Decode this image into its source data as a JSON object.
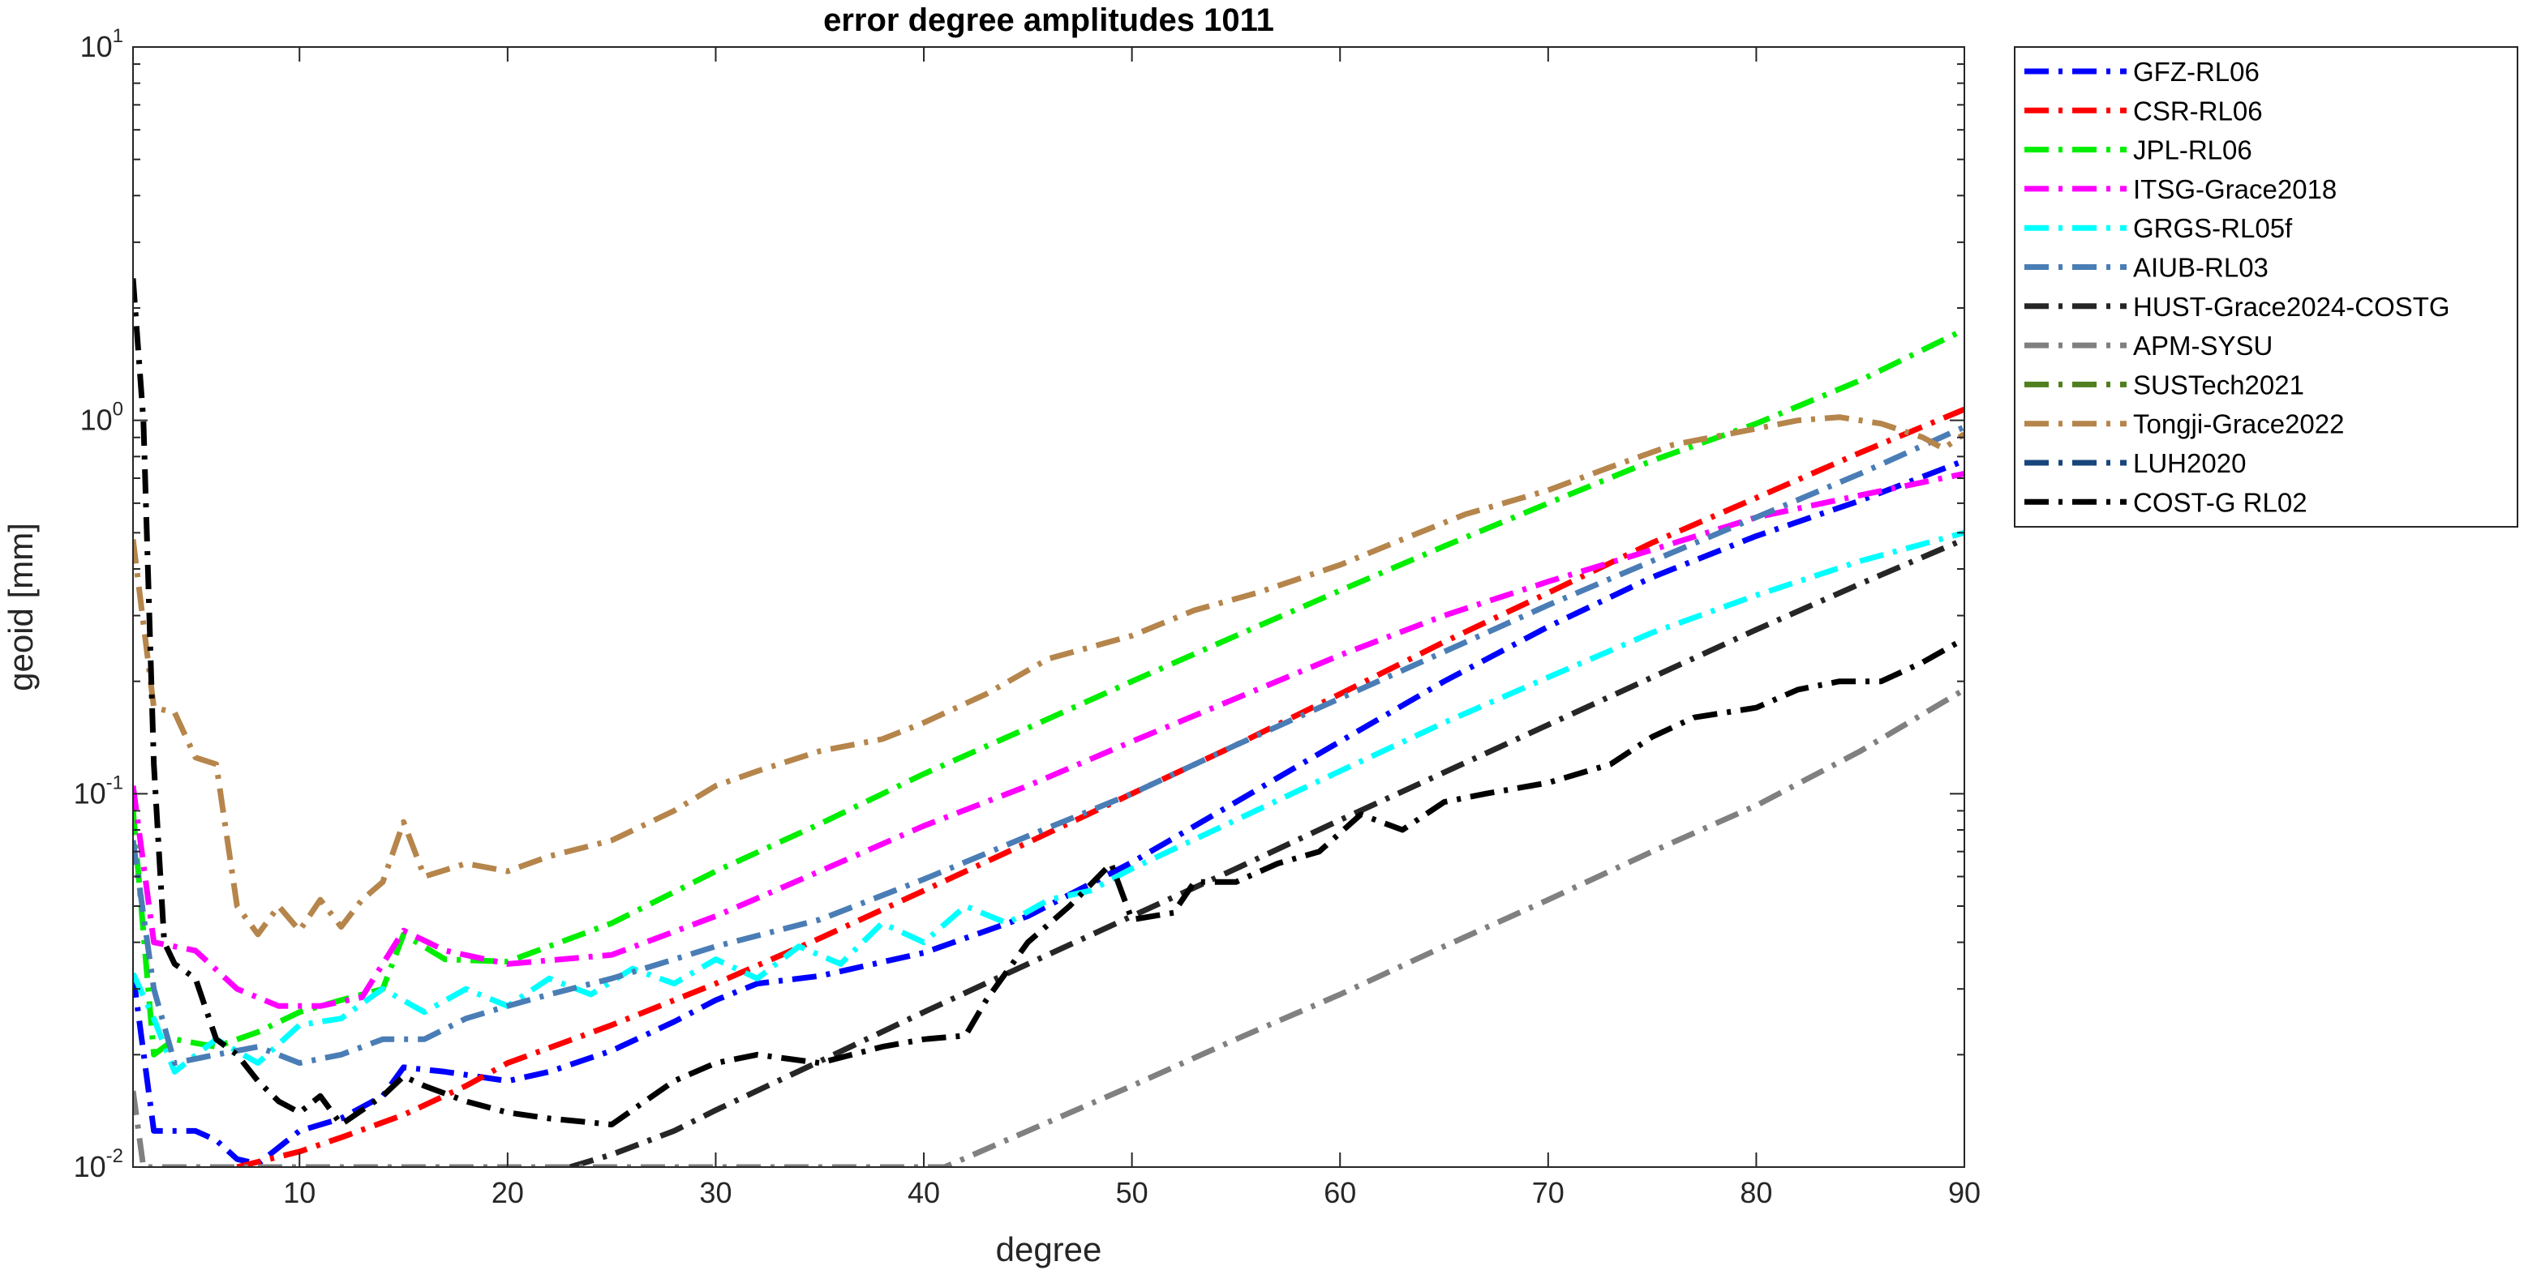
{
  "chart_data": {
    "type": "line",
    "title": "error degree amplitudes 1011",
    "xlabel": "degree",
    "ylabel": "geoid [mm]",
    "xlim": [
      2,
      90
    ],
    "ylim": [
      0.01,
      10
    ],
    "yscale": "log",
    "grid": false,
    "legend_position": "outside-top-right",
    "x_ticks": [
      10,
      20,
      30,
      40,
      50,
      60,
      70,
      80,
      90
    ],
    "x_tick_labels": [
      "10",
      "20",
      "30",
      "40",
      "50",
      "60",
      "70",
      "80",
      "90"
    ],
    "y_ticks": [
      {
        "value": 0.01,
        "base": "10",
        "exp": "-2"
      },
      {
        "value": 0.1,
        "base": "10",
        "exp": "-1"
      },
      {
        "value": 1,
        "base": "10",
        "exp": "0"
      },
      {
        "value": 10,
        "base": "10",
        "exp": "1"
      }
    ],
    "series": [
      {
        "name": "GFZ-RL06",
        "color": "#0000ff",
        "dash": "dashdot",
        "points": [
          [
            2,
            0.033
          ],
          [
            3,
            0.0125
          ],
          [
            4,
            0.0125
          ],
          [
            5,
            0.0125
          ],
          [
            6,
            0.0118
          ],
          [
            7,
            0.0105
          ],
          [
            8,
            0.0102
          ],
          [
            10,
            0.0125
          ],
          [
            12,
            0.0135
          ],
          [
            14,
            0.0155
          ],
          [
            15,
            0.0185
          ],
          [
            17,
            0.018
          ],
          [
            20,
            0.017
          ],
          [
            22,
            0.018
          ],
          [
            25,
            0.0205
          ],
          [
            28,
            0.0245
          ],
          [
            30,
            0.028
          ],
          [
            32,
            0.031
          ],
          [
            35,
            0.0325
          ],
          [
            40,
            0.0375
          ],
          [
            45,
            0.047
          ],
          [
            50,
            0.0655
          ],
          [
            55,
            0.095
          ],
          [
            60,
            0.138
          ],
          [
            65,
            0.2
          ],
          [
            70,
            0.28
          ],
          [
            75,
            0.38
          ],
          [
            80,
            0.49
          ],
          [
            85,
            0.61
          ],
          [
            90,
            0.78
          ]
        ]
      },
      {
        "name": "CSR-RL06",
        "color": "#ff0000",
        "dash": "dashdot",
        "points": [
          [
            7,
            0.01
          ],
          [
            10,
            0.011
          ],
          [
            12,
            0.012
          ],
          [
            15,
            0.0138
          ],
          [
            18,
            0.0165
          ],
          [
            20,
            0.019
          ],
          [
            25,
            0.024
          ],
          [
            30,
            0.031
          ],
          [
            35,
            0.041
          ],
          [
            40,
            0.055
          ],
          [
            45,
            0.074
          ],
          [
            50,
            0.1
          ],
          [
            55,
            0.135
          ],
          [
            60,
            0.185
          ],
          [
            65,
            0.255
          ],
          [
            70,
            0.345
          ],
          [
            75,
            0.47
          ],
          [
            80,
            0.62
          ],
          [
            85,
            0.82
          ],
          [
            90,
            1.07
          ]
        ]
      },
      {
        "name": "JPL-RL06",
        "color": "#00ee00",
        "dash": "dashdot",
        "points": [
          [
            2,
            0.09
          ],
          [
            3,
            0.02
          ],
          [
            4,
            0.022
          ],
          [
            6,
            0.021
          ],
          [
            8,
            0.023
          ],
          [
            10,
            0.026
          ],
          [
            12,
            0.028
          ],
          [
            14,
            0.03
          ],
          [
            15,
            0.042
          ],
          [
            17,
            0.036
          ],
          [
            20,
            0.0355
          ],
          [
            25,
            0.045
          ],
          [
            30,
            0.062
          ],
          [
            35,
            0.083
          ],
          [
            40,
            0.113
          ],
          [
            45,
            0.15
          ],
          [
            50,
            0.2
          ],
          [
            55,
            0.265
          ],
          [
            60,
            0.35
          ],
          [
            65,
            0.46
          ],
          [
            70,
            0.6
          ],
          [
            75,
            0.78
          ],
          [
            80,
            0.98
          ],
          [
            85,
            1.28
          ],
          [
            90,
            1.75
          ]
        ]
      },
      {
        "name": "ITSG-Grace2018",
        "color": "#ff00ff",
        "dash": "dashdot",
        "points": [
          [
            2,
            0.105
          ],
          [
            3,
            0.04
          ],
          [
            5,
            0.038
          ],
          [
            7,
            0.03
          ],
          [
            9,
            0.027
          ],
          [
            11,
            0.027
          ],
          [
            13,
            0.0285
          ],
          [
            15,
            0.043
          ],
          [
            17,
            0.038
          ],
          [
            20,
            0.035
          ],
          [
            25,
            0.037
          ],
          [
            30,
            0.047
          ],
          [
            35,
            0.062
          ],
          [
            40,
            0.082
          ],
          [
            45,
            0.105
          ],
          [
            50,
            0.138
          ],
          [
            55,
            0.18
          ],
          [
            60,
            0.235
          ],
          [
            65,
            0.3
          ],
          [
            70,
            0.37
          ],
          [
            75,
            0.45
          ],
          [
            80,
            0.55
          ],
          [
            85,
            0.63
          ],
          [
            90,
            0.72
          ]
        ]
      },
      {
        "name": "GRGS-RL05f",
        "color": "#00ffff",
        "dash": "dashdot",
        "points": [
          [
            2,
            0.033
          ],
          [
            3,
            0.025
          ],
          [
            4,
            0.018
          ],
          [
            6,
            0.022
          ],
          [
            8,
            0.019
          ],
          [
            10,
            0.024
          ],
          [
            12,
            0.025
          ],
          [
            14,
            0.03
          ],
          [
            16,
            0.026
          ],
          [
            18,
            0.03
          ],
          [
            20,
            0.027
          ],
          [
            22,
            0.032
          ],
          [
            24,
            0.029
          ],
          [
            26,
            0.034
          ],
          [
            28,
            0.031
          ],
          [
            30,
            0.036
          ],
          [
            32,
            0.032
          ],
          [
            34,
            0.039
          ],
          [
            36,
            0.035
          ],
          [
            38,
            0.045
          ],
          [
            40,
            0.04
          ],
          [
            42,
            0.05
          ],
          [
            44,
            0.045
          ],
          [
            46,
            0.052
          ],
          [
            48,
            0.055
          ],
          [
            50,
            0.063
          ],
          [
            55,
            0.085
          ],
          [
            60,
            0.115
          ],
          [
            65,
            0.155
          ],
          [
            70,
            0.205
          ],
          [
            75,
            0.27
          ],
          [
            80,
            0.34
          ],
          [
            85,
            0.42
          ],
          [
            90,
            0.5
          ]
        ]
      },
      {
        "name": "AIUB-RL03",
        "color": "#4a7db5",
        "dash": "dashdot",
        "points": [
          [
            2,
            0.075
          ],
          [
            3,
            0.03
          ],
          [
            4,
            0.019
          ],
          [
            6,
            0.02
          ],
          [
            8,
            0.021
          ],
          [
            10,
            0.019
          ],
          [
            12,
            0.02
          ],
          [
            14,
            0.022
          ],
          [
            16,
            0.022
          ],
          [
            18,
            0.025
          ],
          [
            20,
            0.027
          ],
          [
            22,
            0.029
          ],
          [
            25,
            0.032
          ],
          [
            28,
            0.036
          ],
          [
            30,
            0.039
          ],
          [
            35,
            0.046
          ],
          [
            40,
            0.059
          ],
          [
            45,
            0.077
          ],
          [
            50,
            0.1
          ],
          [
            55,
            0.135
          ],
          [
            60,
            0.18
          ],
          [
            65,
            0.24
          ],
          [
            70,
            0.32
          ],
          [
            75,
            0.42
          ],
          [
            80,
            0.55
          ],
          [
            85,
            0.72
          ],
          [
            90,
            0.96
          ]
        ]
      },
      {
        "name": "HUST-Grace2024-COSTG",
        "color": "#262626",
        "dash": "dashdot",
        "points": [
          [
            23,
            0.01
          ],
          [
            25,
            0.0108
          ],
          [
            28,
            0.0125
          ],
          [
            30,
            0.0142
          ],
          [
            35,
            0.0192
          ],
          [
            40,
            0.026
          ],
          [
            45,
            0.035
          ],
          [
            50,
            0.047
          ],
          [
            55,
            0.063
          ],
          [
            60,
            0.085
          ],
          [
            65,
            0.114
          ],
          [
            70,
            0.153
          ],
          [
            75,
            0.205
          ],
          [
            80,
            0.275
          ],
          [
            85,
            0.365
          ],
          [
            90,
            0.48
          ]
        ]
      },
      {
        "name": "APM-SYSU",
        "color": "#808080",
        "dash": "dashdot",
        "points": [
          [
            2,
            0.016
          ],
          [
            2.5,
            0.01
          ],
          [
            41,
            0.01
          ],
          [
            45,
            0.0125
          ],
          [
            50,
            0.0165
          ],
          [
            55,
            0.022
          ],
          [
            60,
            0.029
          ],
          [
            65,
            0.039
          ],
          [
            70,
            0.052
          ],
          [
            75,
            0.07
          ],
          [
            80,
            0.093
          ],
          [
            85,
            0.13
          ],
          [
            90,
            0.19
          ]
        ]
      },
      {
        "name": "SUSTech2021",
        "color": "#4f7f1f",
        "dash": "dashdot",
        "points": []
      },
      {
        "name": "Tongji-Grace2022",
        "color": "#b5854b",
        "dash": "dashdot",
        "points": [
          [
            2,
            0.48
          ],
          [
            3,
            0.17
          ],
          [
            4,
            0.165
          ],
          [
            5,
            0.125
          ],
          [
            6,
            0.12
          ],
          [
            7,
            0.05
          ],
          [
            8,
            0.042
          ],
          [
            9,
            0.05
          ],
          [
            10,
            0.043
          ],
          [
            11,
            0.052
          ],
          [
            12,
            0.044
          ],
          [
            13,
            0.052
          ],
          [
            14,
            0.058
          ],
          [
            15,
            0.084
          ],
          [
            16,
            0.06
          ],
          [
            18,
            0.065
          ],
          [
            20,
            0.062
          ],
          [
            22,
            0.068
          ],
          [
            25,
            0.075
          ],
          [
            28,
            0.09
          ],
          [
            30,
            0.105
          ],
          [
            32,
            0.115
          ],
          [
            35,
            0.13
          ],
          [
            38,
            0.14
          ],
          [
            40,
            0.155
          ],
          [
            43,
            0.185
          ],
          [
            46,
            0.23
          ],
          [
            50,
            0.265
          ],
          [
            53,
            0.31
          ],
          [
            56,
            0.345
          ],
          [
            60,
            0.41
          ],
          [
            63,
            0.48
          ],
          [
            66,
            0.56
          ],
          [
            70,
            0.65
          ],
          [
            73,
            0.75
          ],
          [
            76,
            0.86
          ],
          [
            80,
            0.95
          ],
          [
            82,
            1.0
          ],
          [
            84,
            1.02
          ],
          [
            86,
            0.98
          ],
          [
            88,
            0.9
          ],
          [
            89,
            0.84
          ],
          [
            90,
            0.92
          ]
        ]
      },
      {
        "name": "LUH2020",
        "color": "#17467a",
        "dash": "dashdot",
        "points": []
      },
      {
        "name": "COST-G RL02",
        "color": "#000000",
        "dash": "dashdot",
        "points": [
          [
            2,
            2.4
          ],
          [
            2.5,
            1.0
          ],
          [
            3,
            0.12
          ],
          [
            3.5,
            0.04
          ],
          [
            4,
            0.035
          ],
          [
            5,
            0.032
          ],
          [
            6,
            0.022
          ],
          [
            7,
            0.02
          ],
          [
            8,
            0.017
          ],
          [
            9,
            0.015
          ],
          [
            10,
            0.014
          ],
          [
            11,
            0.0155
          ],
          [
            12,
            0.013
          ],
          [
            14,
            0.0155
          ],
          [
            15,
            0.0175
          ],
          [
            16,
            0.0165
          ],
          [
            18,
            0.015
          ],
          [
            20,
            0.014
          ],
          [
            22,
            0.0135
          ],
          [
            25,
            0.013
          ],
          [
            28,
            0.017
          ],
          [
            30,
            0.019
          ],
          [
            32,
            0.02
          ],
          [
            35,
            0.019
          ],
          [
            38,
            0.021
          ],
          [
            40,
            0.022
          ],
          [
            42,
            0.0225
          ],
          [
            43,
            0.028
          ],
          [
            45,
            0.04
          ],
          [
            47,
            0.05
          ],
          [
            49,
            0.065
          ],
          [
            50,
            0.046
          ],
          [
            52,
            0.048
          ],
          [
            53,
            0.058
          ],
          [
            55,
            0.058
          ],
          [
            57,
            0.065
          ],
          [
            59,
            0.07
          ],
          [
            61,
            0.088
          ],
          [
            63,
            0.08
          ],
          [
            65,
            0.095
          ],
          [
            67,
            0.1
          ],
          [
            70,
            0.107
          ],
          [
            73,
            0.12
          ],
          [
            75,
            0.142
          ],
          [
            77,
            0.16
          ],
          [
            80,
            0.17
          ],
          [
            82,
            0.19
          ],
          [
            84,
            0.2
          ],
          [
            86,
            0.2
          ],
          [
            88,
            0.225
          ],
          [
            90,
            0.26
          ]
        ]
      }
    ]
  }
}
